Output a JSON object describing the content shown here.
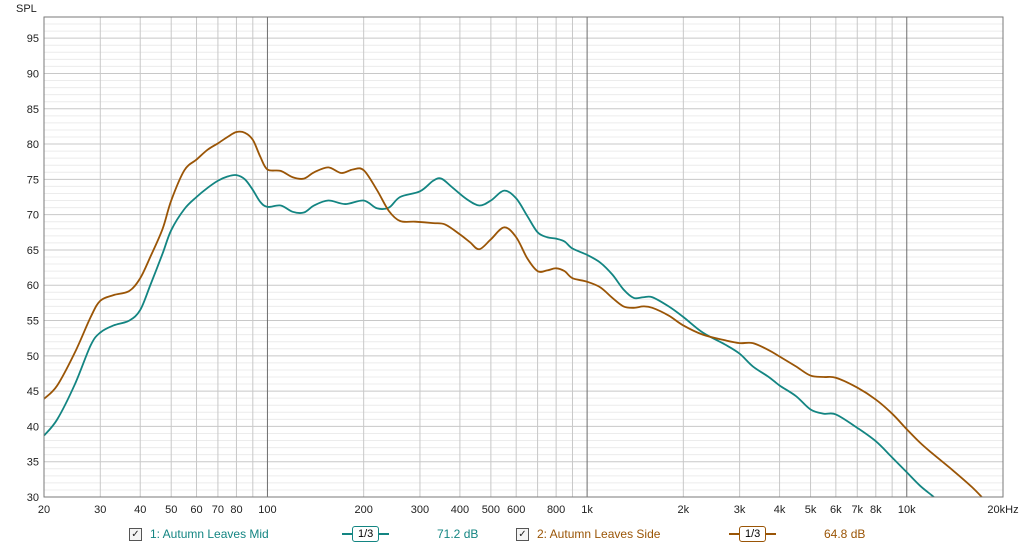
{
  "chart_data": {
    "type": "line",
    "xscale": "log",
    "ylabel": "SPL",
    "xlim": [
      20,
      20000
    ],
    "ylim": [
      30,
      98
    ],
    "grid": true,
    "xticks": [
      {
        "v": 20,
        "label": "20"
      },
      {
        "v": 30,
        "label": "30"
      },
      {
        "v": 40,
        "label": "40"
      },
      {
        "v": 50,
        "label": "50"
      },
      {
        "v": 60,
        "label": "60"
      },
      {
        "v": 70,
        "label": "70"
      },
      {
        "v": 80,
        "label": "80"
      },
      {
        "v": 100,
        "label": "100"
      },
      {
        "v": 200,
        "label": "200"
      },
      {
        "v": 300,
        "label": "300"
      },
      {
        "v": 400,
        "label": "400"
      },
      {
        "v": 500,
        "label": "500"
      },
      {
        "v": 600,
        "label": "600"
      },
      {
        "v": 800,
        "label": "800"
      },
      {
        "v": 1000,
        "label": "1k"
      },
      {
        "v": 2000,
        "label": "2k"
      },
      {
        "v": 3000,
        "label": "3k"
      },
      {
        "v": 4000,
        "label": "4k"
      },
      {
        "v": 5000,
        "label": "5k"
      },
      {
        "v": 6000,
        "label": "6k"
      },
      {
        "v": 7000,
        "label": "7k"
      },
      {
        "v": 8000,
        "label": "8k"
      },
      {
        "v": 10000,
        "label": "10k"
      },
      {
        "v": 20000,
        "label": "20kHz"
      }
    ],
    "yticks": [
      30,
      35,
      40,
      45,
      50,
      55,
      60,
      65,
      70,
      75,
      80,
      85,
      90,
      95
    ],
    "series": [
      {
        "name": "1: Autumn Leaves Mid",
        "color": "#138582",
        "smoothing": "1/3",
        "level": "71.2 dB",
        "points": [
          [
            20,
            38.7
          ],
          [
            22,
            41
          ],
          [
            25,
            46
          ],
          [
            28,
            51.5
          ],
          [
            30,
            53.3
          ],
          [
            33,
            54.3
          ],
          [
            37,
            55
          ],
          [
            40,
            56.5
          ],
          [
            43,
            60
          ],
          [
            47,
            64.5
          ],
          [
            50,
            67.8
          ],
          [
            55,
            70.8
          ],
          [
            60,
            72.5
          ],
          [
            65,
            73.8
          ],
          [
            70,
            74.8
          ],
          [
            75,
            75.4
          ],
          [
            80,
            75.6
          ],
          [
            85,
            75
          ],
          [
            90,
            73.5
          ],
          [
            95,
            71.8
          ],
          [
            100,
            71.1
          ],
          [
            110,
            71.3
          ],
          [
            120,
            70.4
          ],
          [
            130,
            70.3
          ],
          [
            140,
            71.3
          ],
          [
            155,
            72
          ],
          [
            175,
            71.5
          ],
          [
            200,
            72
          ],
          [
            220,
            70.9
          ],
          [
            240,
            71
          ],
          [
            260,
            72.5
          ],
          [
            300,
            73.3
          ],
          [
            330,
            74.8
          ],
          [
            350,
            75.1
          ],
          [
            380,
            73.8
          ],
          [
            420,
            72.2
          ],
          [
            460,
            71.3
          ],
          [
            500,
            72
          ],
          [
            550,
            73.4
          ],
          [
            600,
            72.3
          ],
          [
            650,
            69.8
          ],
          [
            700,
            67.5
          ],
          [
            750,
            66.8
          ],
          [
            800,
            66.6
          ],
          [
            850,
            66.2
          ],
          [
            900,
            65.2
          ],
          [
            1000,
            64.3
          ],
          [
            1100,
            63.2
          ],
          [
            1200,
            61.5
          ],
          [
            1300,
            59.4
          ],
          [
            1400,
            58.2
          ],
          [
            1500,
            58.3
          ],
          [
            1600,
            58.3
          ],
          [
            1800,
            57
          ],
          [
            2000,
            55.5
          ],
          [
            2300,
            53.3
          ],
          [
            2700,
            51.6
          ],
          [
            3000,
            50.3
          ],
          [
            3300,
            48.5
          ],
          [
            3700,
            47
          ],
          [
            4000,
            45.8
          ],
          [
            4500,
            44.3
          ],
          [
            5000,
            42.4
          ],
          [
            5500,
            41.8
          ],
          [
            6000,
            41.7
          ],
          [
            7000,
            39.8
          ],
          [
            8000,
            37.9
          ],
          [
            9000,
            35.6
          ],
          [
            10000,
            33.5
          ],
          [
            11000,
            31.6
          ],
          [
            12000,
            30.2
          ],
          [
            12500,
            29.5
          ]
        ]
      },
      {
        "name": "2: Autumn Leaves Side",
        "color": "#9a5506",
        "smoothing": "1/3",
        "level": "64.8 dB",
        "points": [
          [
            20,
            43.9
          ],
          [
            22,
            45.8
          ],
          [
            25,
            50.5
          ],
          [
            28,
            55.5
          ],
          [
            30,
            57.8
          ],
          [
            33,
            58.6
          ],
          [
            37,
            59.2
          ],
          [
            40,
            61
          ],
          [
            43,
            64
          ],
          [
            47,
            68
          ],
          [
            50,
            72
          ],
          [
            55,
            76.3
          ],
          [
            60,
            77.8
          ],
          [
            65,
            79.2
          ],
          [
            70,
            80.1
          ],
          [
            75,
            81
          ],
          [
            80,
            81.7
          ],
          [
            85,
            81.6
          ],
          [
            90,
            80.6
          ],
          [
            95,
            78.2
          ],
          [
            100,
            76.4
          ],
          [
            110,
            76.2
          ],
          [
            120,
            75.3
          ],
          [
            130,
            75.1
          ],
          [
            140,
            76
          ],
          [
            155,
            76.7
          ],
          [
            170,
            75.9
          ],
          [
            185,
            76.4
          ],
          [
            200,
            76.3
          ],
          [
            220,
            73.5
          ],
          [
            240,
            70.5
          ],
          [
            260,
            69.1
          ],
          [
            290,
            69
          ],
          [
            330,
            68.8
          ],
          [
            360,
            68.6
          ],
          [
            400,
            67.2
          ],
          [
            430,
            66.1
          ],
          [
            460,
            65.1
          ],
          [
            500,
            66.5
          ],
          [
            550,
            68.2
          ],
          [
            600,
            66.8
          ],
          [
            650,
            63.8
          ],
          [
            700,
            62
          ],
          [
            750,
            62.1
          ],
          [
            800,
            62.4
          ],
          [
            850,
            62
          ],
          [
            900,
            61
          ],
          [
            1000,
            60.5
          ],
          [
            1100,
            59.7
          ],
          [
            1200,
            58.2
          ],
          [
            1300,
            57
          ],
          [
            1400,
            56.8
          ],
          [
            1500,
            57
          ],
          [
            1600,
            56.8
          ],
          [
            1800,
            55.7
          ],
          [
            2000,
            54.3
          ],
          [
            2300,
            53
          ],
          [
            2700,
            52.2
          ],
          [
            3000,
            51.8
          ],
          [
            3300,
            51.8
          ],
          [
            3700,
            50.8
          ],
          [
            4000,
            49.9
          ],
          [
            4500,
            48.5
          ],
          [
            5000,
            47.2
          ],
          [
            5500,
            47
          ],
          [
            6000,
            46.9
          ],
          [
            7000,
            45.5
          ],
          [
            8000,
            43.8
          ],
          [
            9000,
            41.8
          ],
          [
            10000,
            39.6
          ],
          [
            11000,
            37.7
          ],
          [
            12000,
            36.2
          ],
          [
            14000,
            33.7
          ],
          [
            16000,
            31.4
          ],
          [
            17500,
            29.6
          ]
        ]
      }
    ]
  }
}
